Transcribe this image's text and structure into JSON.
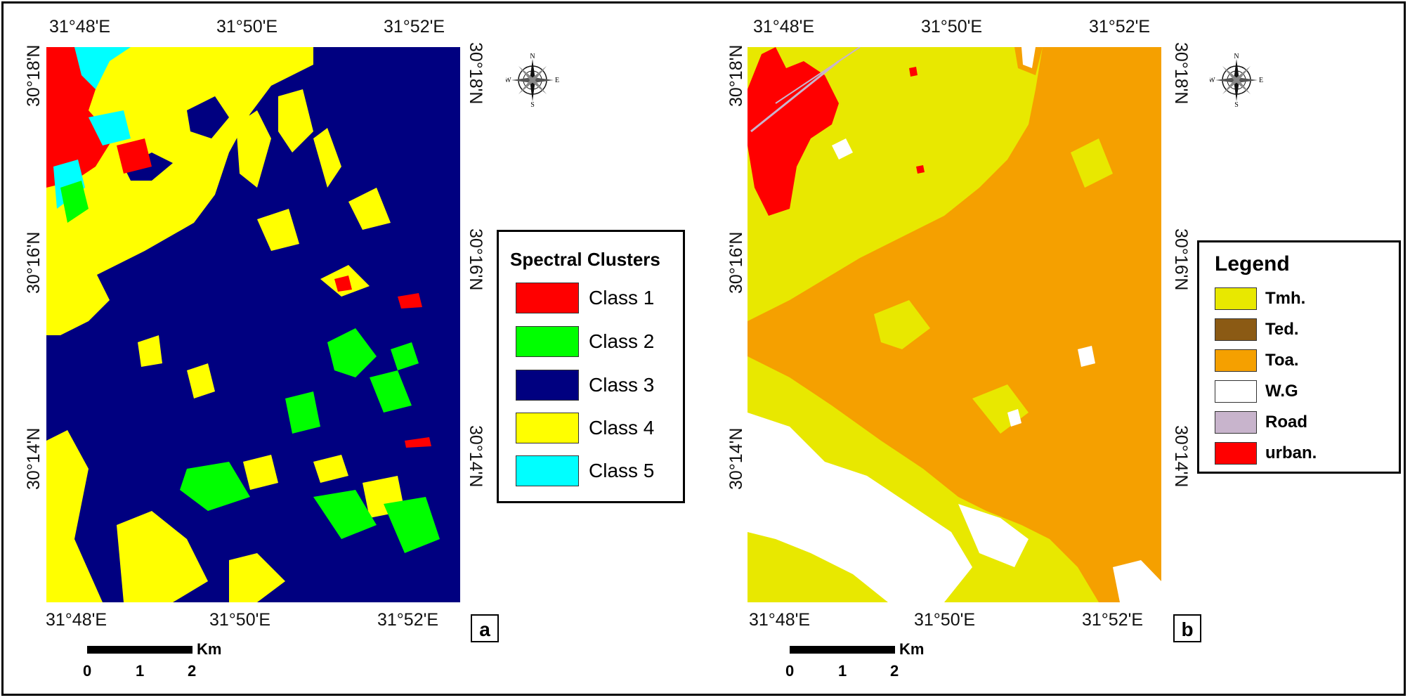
{
  "panels": [
    {
      "id": "a",
      "label": "a",
      "lon_ticks_top": [
        "31°48'E",
        "31°50'E",
        "31°52'E"
      ],
      "lon_ticks_bottom": [
        "31°48'E",
        "31°50'E",
        "31°52'E"
      ],
      "lat_ticks_left": [
        "30°18'N",
        "30°16'N",
        "30°14'N"
      ],
      "lat_ticks_right": [
        "30°18'N",
        "30°16'N",
        "30°14'N"
      ],
      "legend": {
        "title": "Spectral Clusters",
        "items": [
          {
            "label": "Class 1",
            "color": "#ff0000"
          },
          {
            "label": "Class 2",
            "color": "#00ff00"
          },
          {
            "label": "Class 3",
            "color": "#000080"
          },
          {
            "label": "Class 4",
            "color": "#ffff00"
          },
          {
            "label": "Class 5",
            "color": "#00ffff"
          }
        ]
      },
      "scale": {
        "unit": "Km",
        "ticks": [
          "0",
          "1",
          "2"
        ]
      },
      "compass": {
        "n": "N",
        "s": "S",
        "e": "E",
        "w": "W"
      }
    },
    {
      "id": "b",
      "label": "b",
      "lon_ticks_top": [
        "31°48'E",
        "31°50'E",
        "31°52'E"
      ],
      "lon_ticks_bottom": [
        "31°48'E",
        "31°50'E",
        "31°52'E"
      ],
      "lat_ticks_left": [
        "30°18'N",
        "30°16'N",
        "30°14'N"
      ],
      "lat_ticks_right": [
        "30°18'N",
        "30°16'N",
        "30°14'N"
      ],
      "legend": {
        "title": "Legend",
        "items": [
          {
            "label": "Tmh.",
            "color": "#e8e800"
          },
          {
            "label": "Ted.",
            "color": "#8b5a14"
          },
          {
            "label": "Toa.",
            "color": "#f5a000"
          },
          {
            "label": "W.G",
            "color": "#ffffff"
          },
          {
            "label": "Road",
            "color": "#c8b4cc"
          },
          {
            "label": "urban.",
            "color": "#ff0000"
          }
        ]
      },
      "scale": {
        "unit": "Km",
        "ticks": [
          "0",
          "1",
          "2"
        ]
      },
      "compass": {
        "n": "N",
        "s": "S",
        "e": "E",
        "w": "W"
      }
    }
  ]
}
